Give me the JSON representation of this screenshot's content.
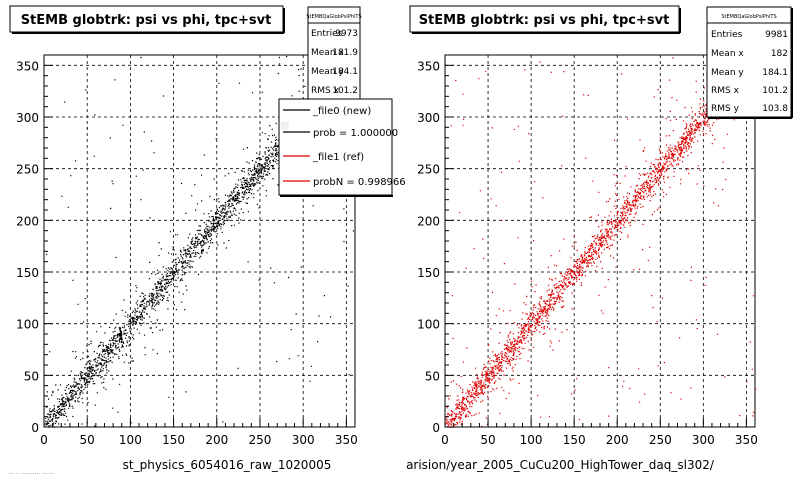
{
  "panels": [
    {
      "title": "StEMB globtrk: psi vs phi, tpc+svt",
      "xlabel": "st_physics_6054016_raw_1020005",
      "stats": {
        "name": "StEMBQaGlobPsiPhiTS",
        "rows": [
          {
            "label": "Entries",
            "value": "9973"
          },
          {
            "label": "Mean x",
            "value": "181.9"
          },
          {
            "label": "Mean y",
            "value": "184.1"
          },
          {
            "label": "RMS x",
            "value": "101.2"
          }
        ]
      },
      "legend": [
        {
          "label": "_file0 (new)",
          "color": "#000000"
        },
        {
          "label": "prob = 1.000000",
          "color": "#000000"
        },
        {
          "label": "_file1 (ref)",
          "color": "#e00000"
        },
        {
          "label": "probN = 0.998966",
          "color": "#e00000"
        }
      ]
    },
    {
      "title": "StEMB globtrk: psi vs phi, tpc+svt",
      "xlabel": "arision/year_2005_CuCu200_HighTower_daq_sl302/",
      "stats": {
        "name": "StEMBQaGlobPsiPhiTS",
        "rows": [
          {
            "label": "Entries",
            "value": "9981"
          },
          {
            "label": "Mean x",
            "value": "182"
          },
          {
            "label": "Mean y",
            "value": "184.1"
          },
          {
            "label": "RMS x",
            "value": "101.2"
          },
          {
            "label": "RMS y",
            "value": "103.8"
          }
        ]
      }
    }
  ],
  "footer_fragment": "...  .. ..........  ......",
  "chart_data": [
    {
      "type": "scatter",
      "title": "StEMB globtrk: psi vs phi, tpc+svt",
      "xlabel": "st_physics_6054016_raw_1020005",
      "ylabel": "",
      "xlim": [
        0,
        360
      ],
      "ylim": [
        0,
        360
      ],
      "xticks": [
        0,
        50,
        100,
        150,
        200,
        250,
        300,
        350
      ],
      "yticks": [
        0,
        50,
        100,
        150,
        200,
        250,
        300,
        350
      ],
      "grid": true,
      "series": [
        {
          "color": "#000000",
          "trend": {
            "slope": 1.0,
            "intercept": 0
          },
          "entries": 9973
        }
      ]
    },
    {
      "type": "scatter",
      "title": "StEMB globtrk: psi vs phi, tpc+svt",
      "xlabel": "arision/year_2005_CuCu200_HighTower_daq_sl302/",
      "ylabel": "",
      "xlim": [
        0,
        360
      ],
      "ylim": [
        0,
        360
      ],
      "xticks": [
        0,
        50,
        100,
        150,
        200,
        250,
        300,
        350
      ],
      "yticks": [
        0,
        50,
        100,
        150,
        200,
        250,
        300,
        350
      ],
      "grid": true,
      "series": [
        {
          "color": "#e00000",
          "trend": {
            "slope": 1.0,
            "intercept": 0
          },
          "entries": 9981
        }
      ]
    }
  ]
}
